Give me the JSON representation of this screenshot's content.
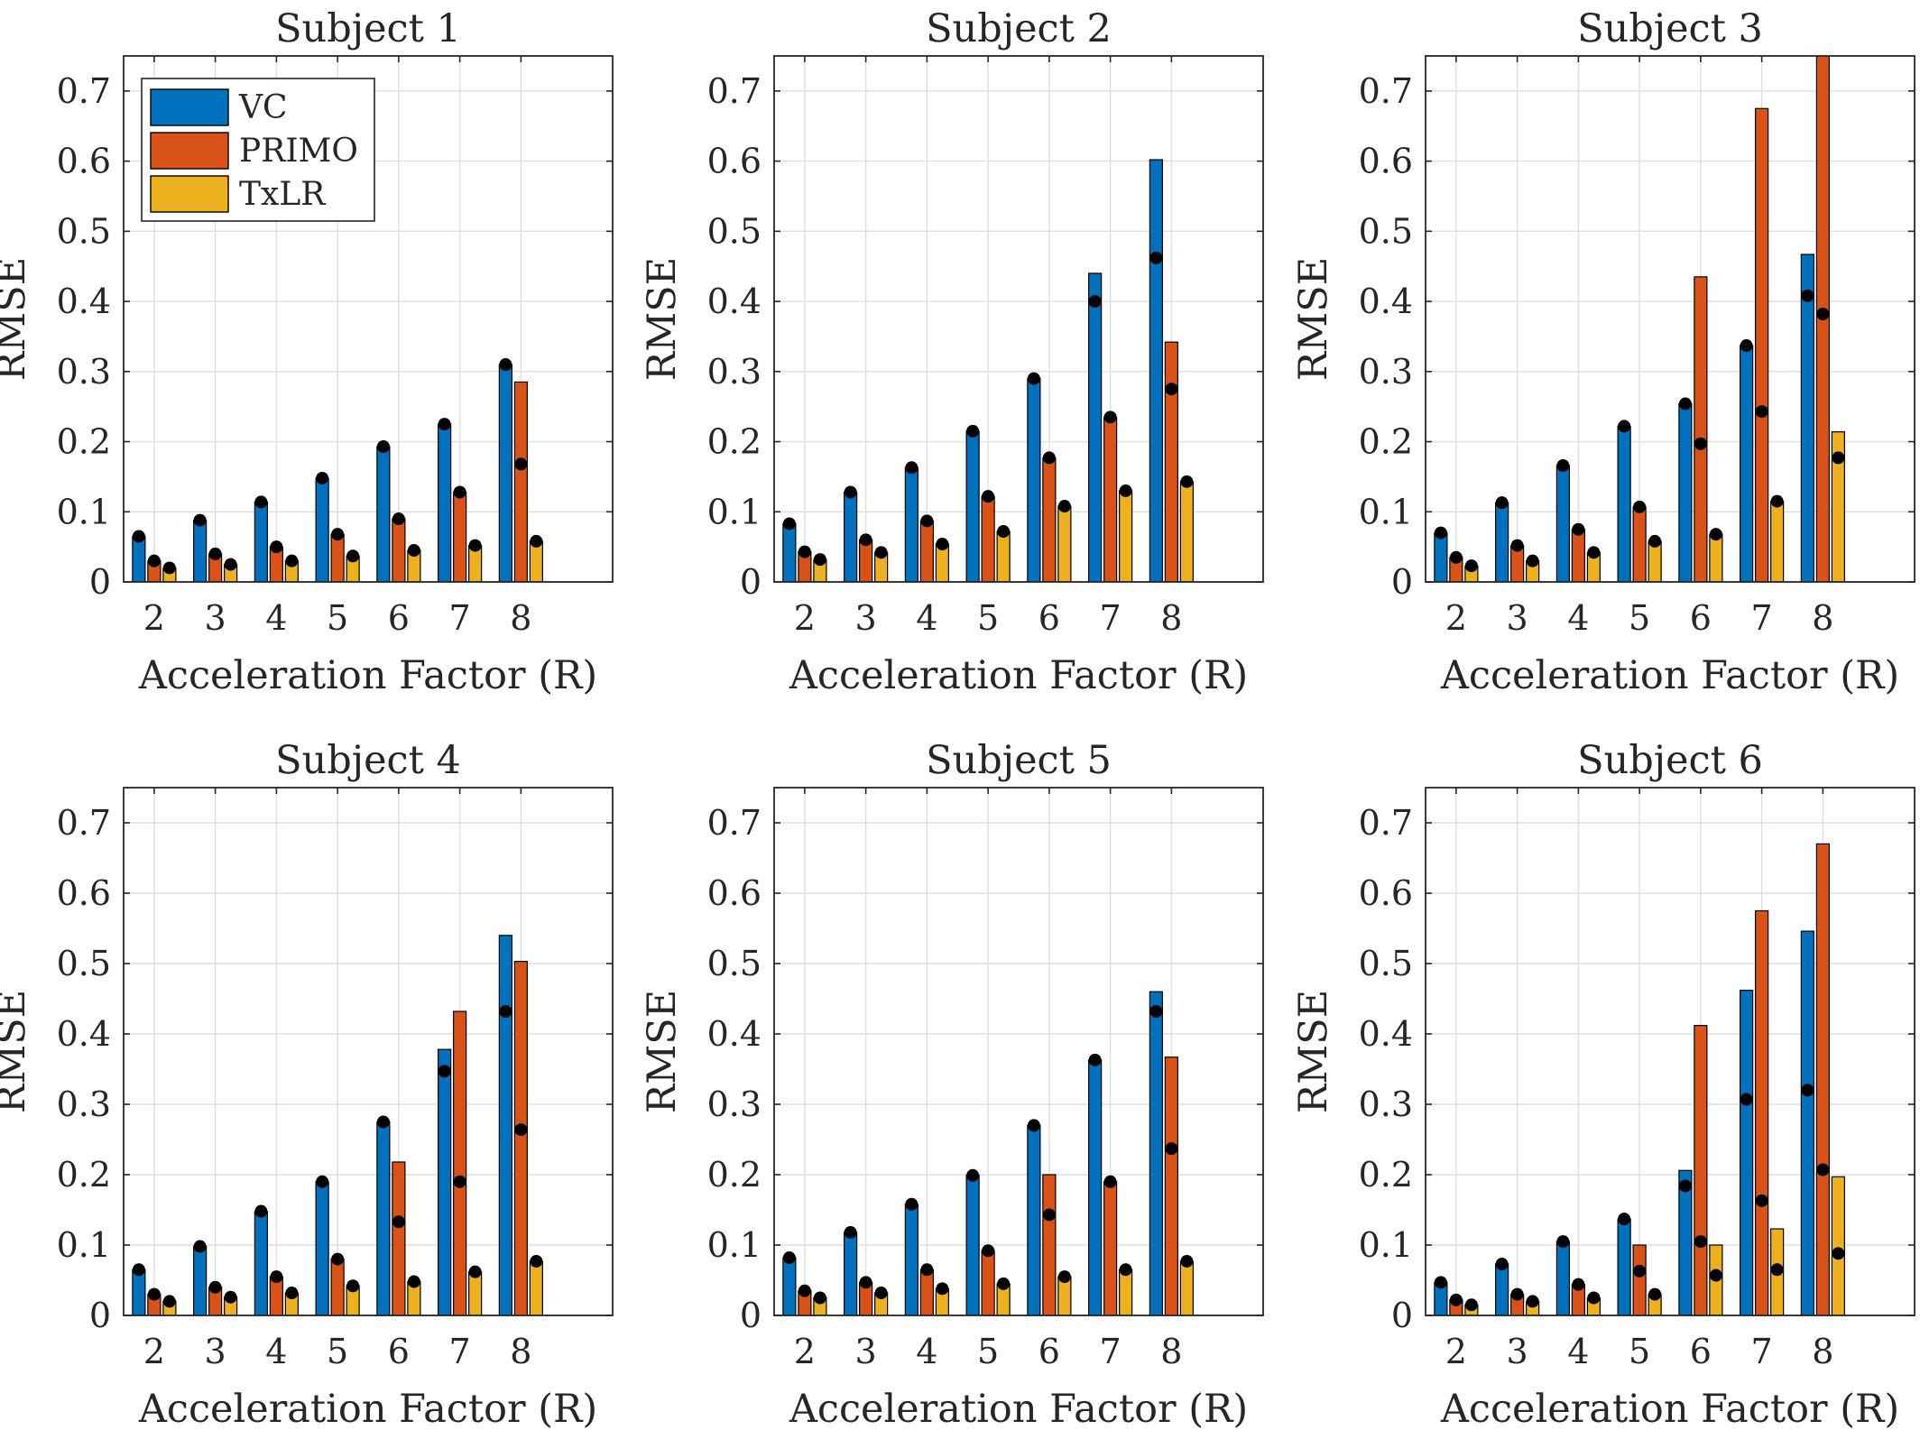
{
  "colors": {
    "VC": "#0072BD",
    "PRIMO": "#D95319",
    "TxLR": "#EDB120",
    "dot": "#000000",
    "grid": "#dfdfdf",
    "axis": "#262626"
  },
  "chart_data": [
    {
      "type": "bar",
      "title": "Subject 1",
      "xlabel": "Acceleration Factor (R)",
      "ylabel": "RMSE",
      "ylim": [
        0,
        0.75
      ],
      "yticks": [
        "0",
        "0.1",
        "0.2",
        "0.3",
        "0.4",
        "0.5",
        "0.6",
        "0.7"
      ],
      "categories": [
        "2",
        "3",
        "4",
        "5",
        "6",
        "7",
        "8"
      ],
      "grid": true,
      "legend": {
        "placement": "top-left",
        "entries": [
          "VC",
          "PRIMO",
          "TxLR"
        ]
      },
      "series": [
        {
          "name": "VC",
          "values": [
            0.065,
            0.088,
            0.114,
            0.148,
            0.193,
            0.225,
            0.31
          ],
          "markers": [
            0.065,
            0.088,
            0.114,
            0.148,
            0.193,
            0.225,
            0.31
          ]
        },
        {
          "name": "PRIMO",
          "values": [
            0.03,
            0.04,
            0.05,
            0.068,
            0.09,
            0.128,
            0.285
          ],
          "markers": [
            0.03,
            0.04,
            0.05,
            0.068,
            0.09,
            0.128,
            0.168
          ]
        },
        {
          "name": "TxLR",
          "values": [
            0.02,
            0.025,
            0.03,
            0.037,
            0.045,
            0.052,
            0.058
          ],
          "markers": [
            0.02,
            0.025,
            0.03,
            0.037,
            0.045,
            0.052,
            0.058
          ]
        }
      ]
    },
    {
      "type": "bar",
      "title": "Subject 2",
      "xlabel": "Acceleration Factor (R)",
      "ylabel": "RMSE",
      "ylim": [
        0,
        0.75
      ],
      "yticks": [
        "0",
        "0.1",
        "0.2",
        "0.3",
        "0.4",
        "0.5",
        "0.6",
        "0.7"
      ],
      "categories": [
        "2",
        "3",
        "4",
        "5",
        "6",
        "7",
        "8"
      ],
      "grid": true,
      "series": [
        {
          "name": "VC",
          "values": [
            0.083,
            0.128,
            0.163,
            0.215,
            0.29,
            0.44,
            0.602
          ],
          "markers": [
            0.083,
            0.128,
            0.163,
            0.215,
            0.29,
            0.4,
            0.462
          ]
        },
        {
          "name": "PRIMO",
          "values": [
            0.043,
            0.06,
            0.087,
            0.122,
            0.177,
            0.235,
            0.342
          ],
          "markers": [
            0.043,
            0.06,
            0.087,
            0.122,
            0.177,
            0.235,
            0.275
          ]
        },
        {
          "name": "TxLR",
          "values": [
            0.032,
            0.042,
            0.054,
            0.072,
            0.108,
            0.13,
            0.143
          ],
          "markers": [
            0.032,
            0.042,
            0.054,
            0.072,
            0.108,
            0.13,
            0.143
          ]
        }
      ]
    },
    {
      "type": "bar",
      "title": "Subject 3",
      "xlabel": "Acceleration Factor (R)",
      "ylabel": "RMSE",
      "ylim": [
        0,
        0.75
      ],
      "yticks": [
        "0",
        "0.1",
        "0.2",
        "0.3",
        "0.4",
        "0.5",
        "0.6",
        "0.7"
      ],
      "categories": [
        "2",
        "3",
        "4",
        "5",
        "6",
        "7",
        "8"
      ],
      "grid": true,
      "series": [
        {
          "name": "VC",
          "values": [
            0.07,
            0.113,
            0.166,
            0.222,
            0.254,
            0.337,
            0.467
          ],
          "markers": [
            0.07,
            0.113,
            0.166,
            0.222,
            0.254,
            0.337,
            0.408
          ]
        },
        {
          "name": "PRIMO",
          "values": [
            0.035,
            0.052,
            0.075,
            0.107,
            0.435,
            0.675,
            0.75
          ],
          "markers": [
            0.035,
            0.052,
            0.075,
            0.107,
            0.197,
            0.243,
            0.382
          ]
        },
        {
          "name": "TxLR",
          "values": [
            0.023,
            0.03,
            0.042,
            0.058,
            0.068,
            0.115,
            0.214
          ],
          "markers": [
            0.023,
            0.03,
            0.042,
            0.058,
            0.068,
            0.115,
            0.177
          ]
        }
      ]
    },
    {
      "type": "bar",
      "title": "Subject 4",
      "xlabel": "Acceleration Factor (R)",
      "ylabel": "RMSE",
      "ylim": [
        0,
        0.75
      ],
      "yticks": [
        "0",
        "0.1",
        "0.2",
        "0.3",
        "0.4",
        "0.5",
        "0.6",
        "0.7"
      ],
      "categories": [
        "2",
        "3",
        "4",
        "5",
        "6",
        "7",
        "8"
      ],
      "grid": true,
      "series": [
        {
          "name": "VC",
          "values": [
            0.065,
            0.098,
            0.148,
            0.19,
            0.275,
            0.378,
            0.54
          ],
          "markers": [
            0.065,
            0.098,
            0.148,
            0.19,
            0.275,
            0.347,
            0.432
          ]
        },
        {
          "name": "PRIMO",
          "values": [
            0.03,
            0.04,
            0.055,
            0.08,
            0.218,
            0.432,
            0.503
          ],
          "markers": [
            0.03,
            0.04,
            0.055,
            0.08,
            0.133,
            0.19,
            0.264
          ]
        },
        {
          "name": "TxLR",
          "values": [
            0.02,
            0.026,
            0.032,
            0.042,
            0.048,
            0.062,
            0.077
          ],
          "markers": [
            0.02,
            0.026,
            0.032,
            0.042,
            0.048,
            0.062,
            0.077
          ]
        }
      ]
    },
    {
      "type": "bar",
      "title": "Subject 5",
      "xlabel": "Acceleration Factor (R)",
      "ylabel": "RMSE",
      "ylim": [
        0,
        0.75
      ],
      "yticks": [
        "0",
        "0.1",
        "0.2",
        "0.3",
        "0.4",
        "0.5",
        "0.6",
        "0.7"
      ],
      "categories": [
        "2",
        "3",
        "4",
        "5",
        "6",
        "7",
        "8"
      ],
      "grid": true,
      "series": [
        {
          "name": "VC",
          "values": [
            0.082,
            0.118,
            0.158,
            0.199,
            0.27,
            0.363,
            0.46
          ],
          "markers": [
            0.082,
            0.118,
            0.158,
            0.199,
            0.27,
            0.363,
            0.432
          ]
        },
        {
          "name": "PRIMO",
          "values": [
            0.035,
            0.047,
            0.065,
            0.092,
            0.2,
            0.19,
            0.367
          ],
          "markers": [
            0.035,
            0.047,
            0.065,
            0.092,
            0.143,
            0.19,
            0.237
          ]
        },
        {
          "name": "TxLR",
          "values": [
            0.025,
            0.032,
            0.038,
            0.045,
            0.055,
            0.065,
            0.077
          ],
          "markers": [
            0.025,
            0.032,
            0.038,
            0.045,
            0.055,
            0.065,
            0.077
          ]
        }
      ]
    },
    {
      "type": "bar",
      "title": "Subject 6",
      "xlabel": "Acceleration Factor (R)",
      "ylabel": "RMSE",
      "ylim": [
        0,
        0.75
      ],
      "yticks": [
        "0",
        "0.1",
        "0.2",
        "0.3",
        "0.4",
        "0.5",
        "0.6",
        "0.7"
      ],
      "categories": [
        "2",
        "3",
        "4",
        "5",
        "6",
        "7",
        "8"
      ],
      "grid": true,
      "series": [
        {
          "name": "VC",
          "values": [
            0.047,
            0.073,
            0.105,
            0.137,
            0.206,
            0.462,
            0.546
          ],
          "markers": [
            0.047,
            0.073,
            0.105,
            0.137,
            0.184,
            0.307,
            0.32
          ]
        },
        {
          "name": "PRIMO",
          "values": [
            0.022,
            0.03,
            0.044,
            0.1,
            0.412,
            0.575,
            0.67
          ],
          "markers": [
            0.022,
            0.03,
            0.044,
            0.063,
            0.105,
            0.163,
            0.207
          ]
        },
        {
          "name": "TxLR",
          "values": [
            0.015,
            0.02,
            0.025,
            0.03,
            0.1,
            0.123,
            0.197
          ],
          "markers": [
            0.015,
            0.02,
            0.025,
            0.03,
            0.057,
            0.065,
            0.088
          ]
        }
      ]
    }
  ]
}
